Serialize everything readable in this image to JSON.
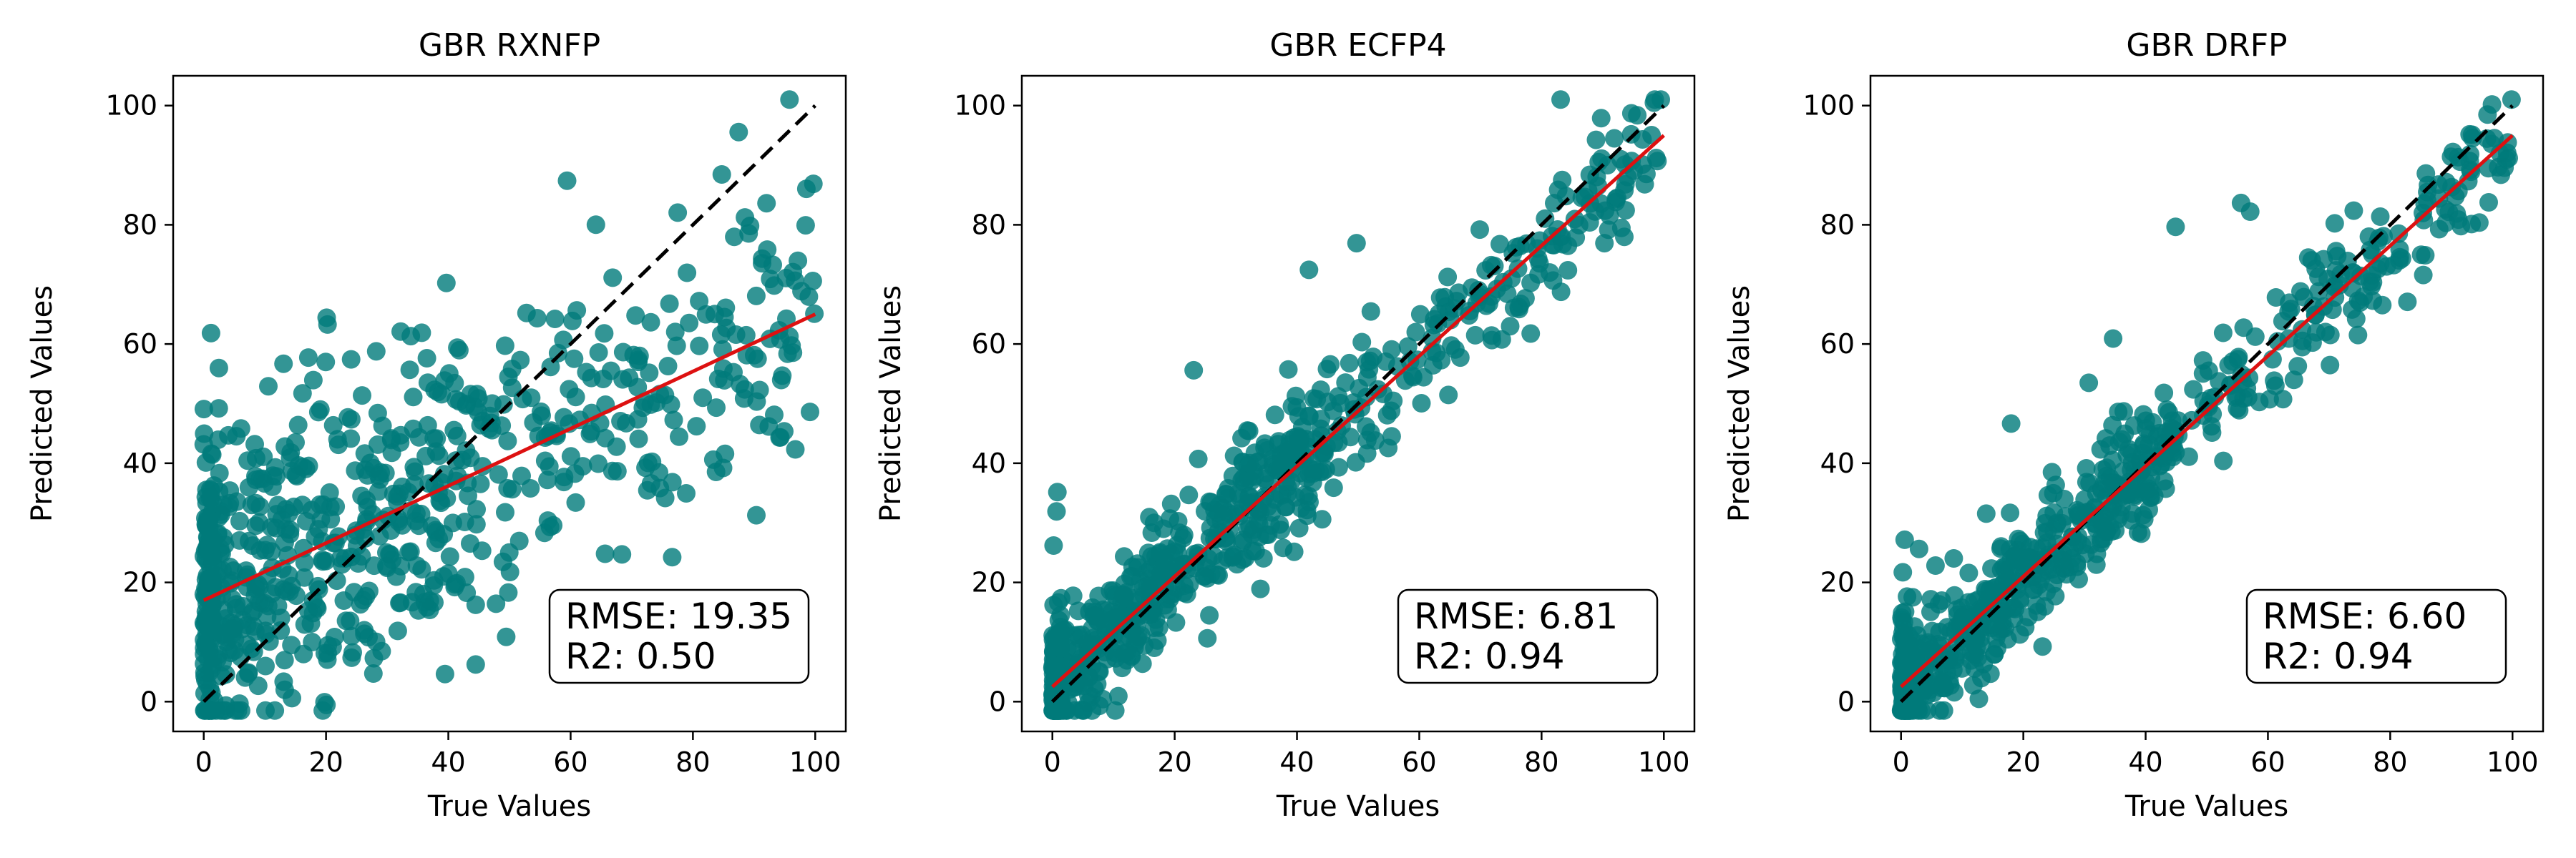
{
  "colors": {
    "points": "#007a7a",
    "fit_line": "#dd1111",
    "identity_line": "#000000",
    "axes": "#000000"
  },
  "chart_data": [
    {
      "type": "scatter",
      "title": "GBR RXNFP",
      "xlabel": "True Values",
      "ylabel": "Predicted Values",
      "xlim": [
        -5,
        105
      ],
      "ylim": [
        -5,
        105
      ],
      "xticks": [
        0,
        20,
        40,
        60,
        80,
        100
      ],
      "yticks": [
        0,
        20,
        40,
        60,
        80,
        100
      ],
      "grid": false,
      "identity_line": {
        "from": [
          0,
          0
        ],
        "to": [
          100,
          100
        ],
        "style": "dashed"
      },
      "fit_line": {
        "from": [
          0,
          17
        ],
        "to": [
          100,
          65
        ]
      },
      "metrics": {
        "rmse_text": "RMSE: 19.35",
        "r2_text": "R2: 0.50",
        "position": "bottom-right"
      },
      "spread": {
        "intercept": 17,
        "slope": 0.48,
        "noise": 13,
        "seed": 11,
        "n": 760
      }
    },
    {
      "type": "scatter",
      "title": "GBR ECFP4",
      "xlabel": "True Values",
      "ylabel": "Predicted Values",
      "xlim": [
        -5,
        105
      ],
      "ylim": [
        -5,
        105
      ],
      "xticks": [
        0,
        20,
        40,
        60,
        80,
        100
      ],
      "yticks": [
        0,
        20,
        40,
        60,
        80,
        100
      ],
      "grid": false,
      "identity_line": {
        "from": [
          0,
          0
        ],
        "to": [
          100,
          100
        ],
        "style": "dashed"
      },
      "fit_line": {
        "from": [
          0,
          2.5
        ],
        "to": [
          100,
          95
        ]
      },
      "metrics": {
        "rmse_text": "RMSE: 6.81",
        "r2_text": "R2: 0.94",
        "position": "bottom-right"
      },
      "spread": {
        "intercept": 2.5,
        "slope": 0.925,
        "noise": 5.2,
        "seed": 23,
        "n": 760
      }
    },
    {
      "type": "scatter",
      "title": "GBR DRFP",
      "xlabel": "True Values",
      "ylabel": "Predicted Values",
      "xlim": [
        -5,
        105
      ],
      "ylim": [
        -5,
        105
      ],
      "xticks": [
        0,
        20,
        40,
        60,
        80,
        100
      ],
      "yticks": [
        0,
        20,
        40,
        60,
        80,
        100
      ],
      "grid": false,
      "identity_line": {
        "from": [
          0,
          0
        ],
        "to": [
          100,
          100
        ],
        "style": "dashed"
      },
      "fit_line": {
        "from": [
          0,
          2.5
        ],
        "to": [
          100,
          95
        ]
      },
      "metrics": {
        "rmse_text": "RMSE: 6.60",
        "r2_text": "R2: 0.94",
        "position": "bottom-right"
      },
      "spread": {
        "intercept": 2.5,
        "slope": 0.925,
        "noise": 5.0,
        "seed": 37,
        "n": 760
      }
    }
  ]
}
